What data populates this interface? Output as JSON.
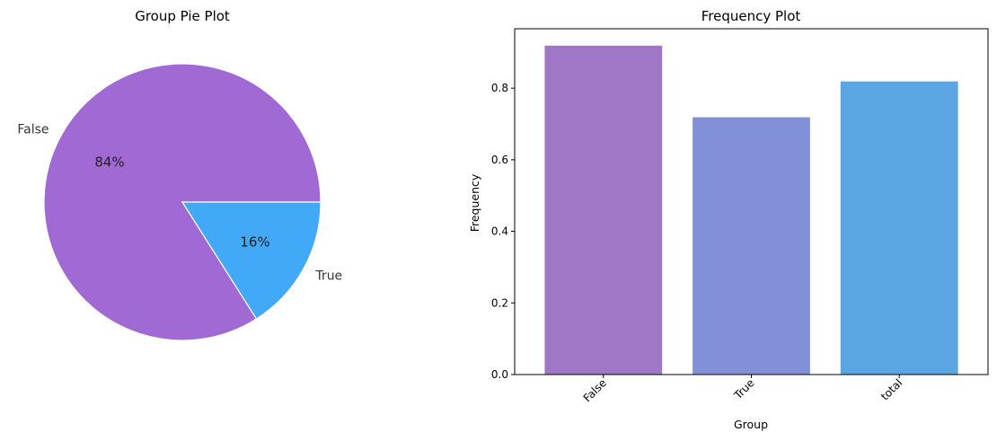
{
  "chart_data": [
    {
      "type": "pie",
      "title": "Group Pie Plot",
      "slices": [
        {
          "label": "False",
          "value": 84,
          "pct_label": "84%",
          "color": "#A169D3"
        },
        {
          "label": "True",
          "value": 16,
          "pct_label": "16%",
          "color": "#42A9F8"
        }
      ],
      "start_angle_deg": 0,
      "direction": "counterclockwise",
      "edge_color": "#ffffff"
    },
    {
      "type": "bar",
      "title": "Frequency Plot",
      "xlabel": "Group",
      "ylabel": "Frequency",
      "categories": [
        "False",
        "True",
        "total"
      ],
      "values": [
        0.92,
        0.72,
        0.82
      ],
      "colors": [
        "#A077C6",
        "#8290D7",
        "#5BA5E2"
      ],
      "ylim": [
        0,
        0.966
      ],
      "yticks": [
        0.0,
        0.2,
        0.4,
        0.6,
        0.8
      ],
      "ytick_labels": [
        "0.0",
        "0.2",
        "0.4",
        "0.6",
        "0.8"
      ],
      "xtick_rotation_deg": 45,
      "grid": false,
      "legend": "none"
    }
  ]
}
